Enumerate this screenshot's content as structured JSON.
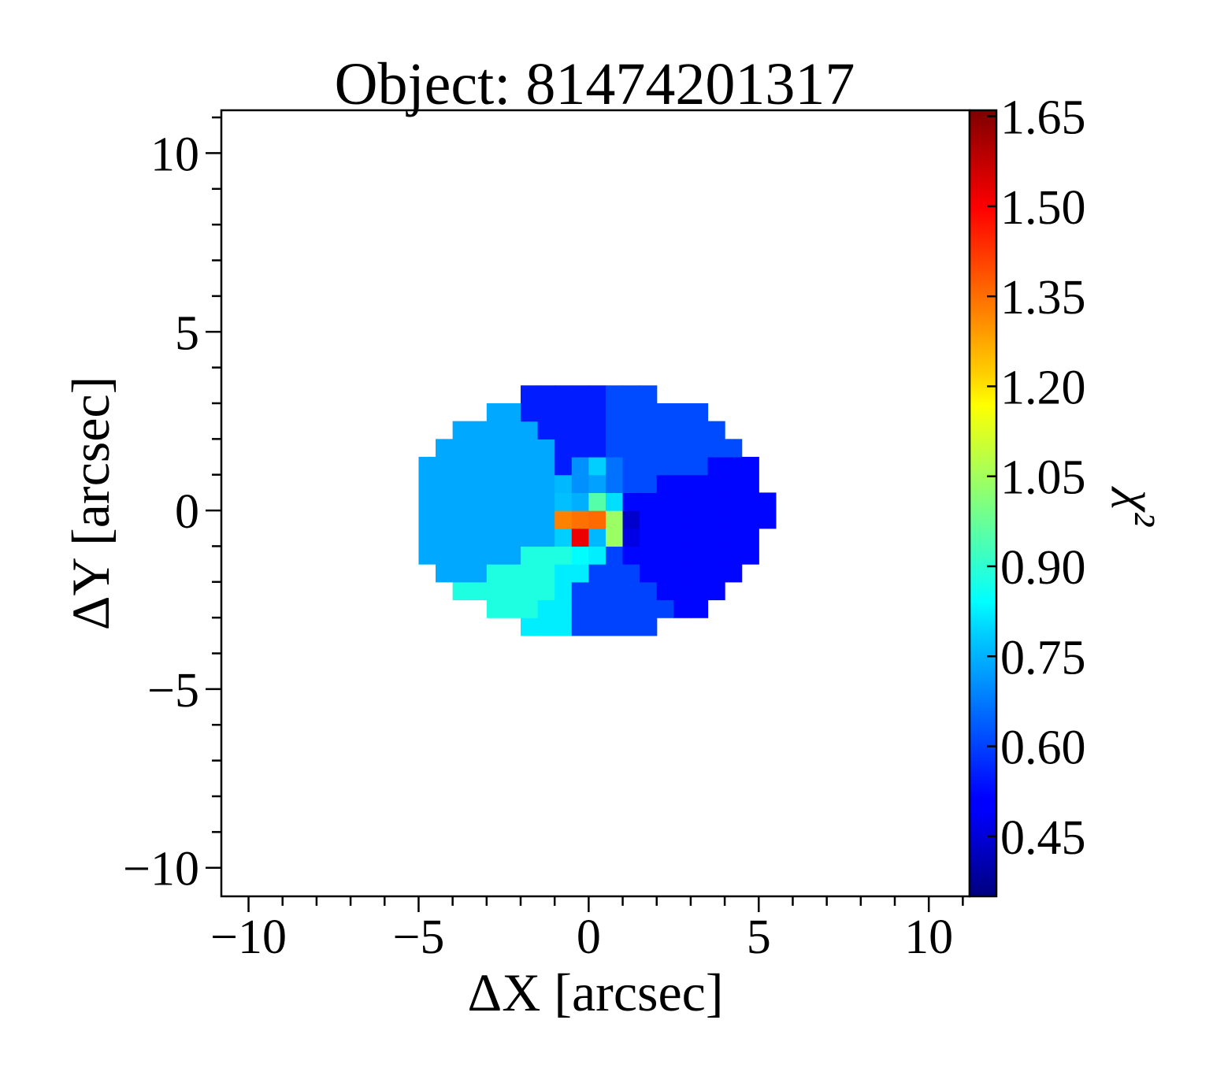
{
  "chart_data": {
    "type": "heatmap",
    "title": "Object: 81474201317",
    "xlabel": "ΔX [arcsec]",
    "ylabel": "ΔY [arcsec]",
    "xlim": [
      -10.8,
      11.2
    ],
    "ylim": [
      -10.8,
      11.2
    ],
    "xticks": [
      -10,
      -5,
      0,
      5,
      10
    ],
    "yticks": [
      -10,
      -5,
      0,
      5,
      10
    ],
    "xtick_labels": [
      "−10",
      "−5",
      "0",
      "5",
      "10"
    ],
    "ytick_labels": [
      "−10",
      "−5",
      "0",
      "5",
      "10"
    ],
    "colorbar": {
      "label": "χ²",
      "colormap": "jet",
      "range": [
        0.35,
        1.66
      ],
      "ticks": [
        0.45,
        0.6,
        0.75,
        0.9,
        1.05,
        1.2,
        1.35,
        1.5,
        1.65
      ],
      "tick_labels": [
        "0.45",
        "0.60",
        "0.75",
        "0.90",
        "1.05",
        "1.20",
        "1.35",
        "1.50",
        "1.65"
      ]
    },
    "ellipse": {
      "center": [
        0.1,
        0.0
      ],
      "semi_major": 5.25,
      "semi_minor": 3.55,
      "pixel": 0.5
    },
    "regions": [
      {
        "name": "outer-north-west",
        "theta": [
          115,
          150
        ],
        "r": [
          0.4,
          1.05
        ],
        "value": 0.62
      },
      {
        "name": "outer-north",
        "theta": [
          83,
          115
        ],
        "r": [
          0.4,
          1.05
        ],
        "value": 0.55
      },
      {
        "name": "outer-north-east",
        "theta": [
          30,
          83
        ],
        "r": [
          0.4,
          1.05
        ],
        "value": 0.61
      },
      {
        "name": "outer-east",
        "theta": [
          -60,
          30
        ],
        "r": [
          0.4,
          1.05
        ],
        "value": 0.52
      },
      {
        "name": "outer-south-east",
        "theta": [
          -110,
          -60
        ],
        "r": [
          0.4,
          1.05
        ],
        "value": 0.6
      },
      {
        "name": "outer-south",
        "theta": [
          -150,
          -110
        ],
        "r": [
          0.4,
          1.05
        ],
        "value": 0.82
      },
      {
        "name": "outer-south-west",
        "theta": [
          150,
          210
        ],
        "r": [
          0.4,
          1.05
        ],
        "value": 0.88
      },
      {
        "name": "outer-west",
        "theta": [
          -150,
          150
        ],
        "r": [
          0.4,
          1.05
        ],
        "value": 0.73
      }
    ],
    "pixels": [
      {
        "x": -0.5,
        "y": 0.5,
        "value": 0.7
      },
      {
        "x": 0.0,
        "y": 0.5,
        "value": 0.72
      },
      {
        "x": 0.5,
        "y": 0.5,
        "value": 0.66
      },
      {
        "x": -0.5,
        "y": 1.0,
        "value": 0.7
      },
      {
        "x": 0.5,
        "y": 1.0,
        "value": 0.66
      },
      {
        "x": 0.0,
        "y": 1.0,
        "value": 0.78
      },
      {
        "x": -1.0,
        "y": 0.5,
        "value": 0.75
      },
      {
        "x": -1.0,
        "y": 0.0,
        "value": 0.76
      },
      {
        "x": -0.5,
        "y": 0.0,
        "value": 0.74
      },
      {
        "x": 0.0,
        "y": 0.0,
        "value": 0.95
      },
      {
        "x": 0.5,
        "y": 0.0,
        "value": 0.8
      },
      {
        "x": -1.0,
        "y": -0.5,
        "value": 1.33
      },
      {
        "x": -0.5,
        "y": -0.5,
        "value": 1.35
      },
      {
        "x": 0.0,
        "y": -0.5,
        "value": 1.36
      },
      {
        "x": 0.5,
        "y": -0.5,
        "value": 1.04
      },
      {
        "x": 0.5,
        "y": -1.0,
        "value": 1.04
      },
      {
        "x": 1.0,
        "y": -0.5,
        "value": 0.45
      },
      {
        "x": 1.0,
        "y": -1.0,
        "value": 0.48
      },
      {
        "x": -0.5,
        "y": -1.0,
        "value": 1.52
      },
      {
        "x": 0.0,
        "y": -1.0,
        "value": 0.75
      },
      {
        "x": -1.0,
        "y": -1.0,
        "value": 0.78
      },
      {
        "x": -0.5,
        "y": -1.5,
        "value": 0.84
      },
      {
        "x": 0.0,
        "y": -1.5,
        "value": 0.82
      }
    ]
  }
}
